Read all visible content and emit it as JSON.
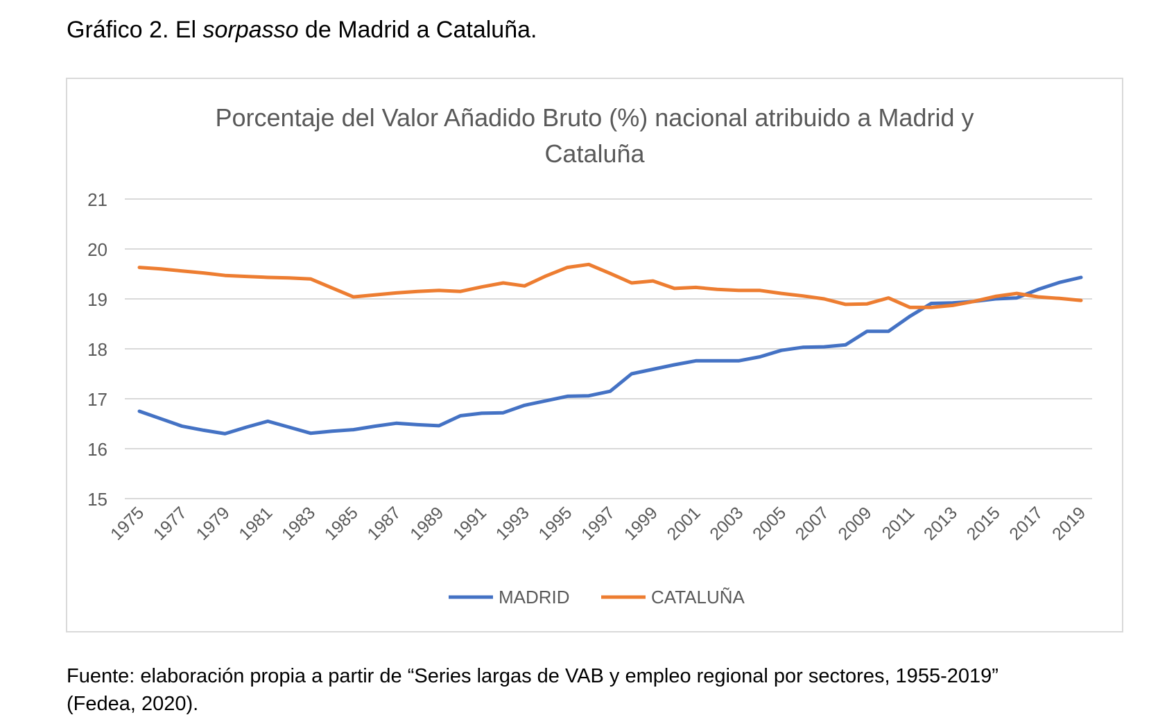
{
  "heading": {
    "prefix": "Gráfico 2. El ",
    "italic": "sorpasso",
    "suffix": " de Madrid a Cataluña."
  },
  "footer": {
    "line1": "Fuente: elaboración propia a partir de “Series largas de VAB y empleo regional por sectores, 1955-2019”",
    "line2": "(Fedea, 2020)."
  },
  "colors": {
    "madrid": "#4472C4",
    "cataluna": "#ED7D31",
    "grid": "#d9d9d9",
    "axis_text": "#595959"
  },
  "chart_data": {
    "type": "line",
    "title_line1": "Porcentaje del Valor Añadido Bruto (%) nacional atribuido a Madrid y",
    "title_line2": "Cataluña",
    "xlabel": "",
    "ylabel": "",
    "ylim": [
      15,
      21
    ],
    "yticks": [
      15,
      16,
      17,
      18,
      19,
      20,
      21
    ],
    "grid": true,
    "legend_position": "bottom",
    "x": [
      1975,
      1976,
      1977,
      1978,
      1979,
      1980,
      1981,
      1982,
      1983,
      1984,
      1985,
      1986,
      1987,
      1988,
      1989,
      1990,
      1991,
      1992,
      1993,
      1994,
      1995,
      1996,
      1997,
      1998,
      1999,
      2000,
      2001,
      2002,
      2003,
      2004,
      2005,
      2006,
      2007,
      2008,
      2009,
      2010,
      2011,
      2012,
      2013,
      2014,
      2015,
      2016,
      2017,
      2018,
      2019
    ],
    "xtick_labels": [
      "1975",
      "1977",
      "1979",
      "1981",
      "1983",
      "1985",
      "1987",
      "1989",
      "1991",
      "1993",
      "1995",
      "1997",
      "1999",
      "2001",
      "2003",
      "2005",
      "2007",
      "2009",
      "2011",
      "2013",
      "2015",
      "2017",
      "2019"
    ],
    "series": [
      {
        "name": "MADRID",
        "values": [
          16.75,
          16.6,
          16.45,
          16.37,
          16.3,
          16.43,
          16.55,
          16.43,
          16.31,
          16.35,
          16.38,
          16.45,
          16.51,
          16.48,
          16.46,
          16.66,
          16.71,
          16.72,
          16.87,
          16.96,
          17.05,
          17.06,
          17.15,
          17.5,
          17.59,
          17.68,
          17.76,
          17.76,
          17.76,
          17.84,
          17.97,
          18.03,
          18.04,
          18.08,
          18.35,
          18.35,
          18.65,
          18.91,
          18.92,
          18.95,
          19.0,
          19.02,
          19.19,
          19.33,
          19.43
        ]
      },
      {
        "name": "CATALUÑA",
        "values": [
          19.63,
          19.6,
          19.56,
          19.52,
          19.47,
          19.45,
          19.43,
          19.42,
          19.4,
          19.22,
          19.04,
          19.08,
          19.12,
          19.15,
          19.17,
          19.15,
          19.24,
          19.32,
          19.26,
          19.46,
          19.63,
          19.69,
          19.51,
          19.32,
          19.36,
          19.21,
          19.23,
          19.19,
          19.17,
          19.17,
          19.11,
          19.06,
          19.0,
          18.89,
          18.9,
          19.02,
          18.83,
          18.83,
          18.87,
          18.95,
          19.05,
          19.11,
          19.04,
          19.01,
          18.97
        ]
      }
    ]
  }
}
